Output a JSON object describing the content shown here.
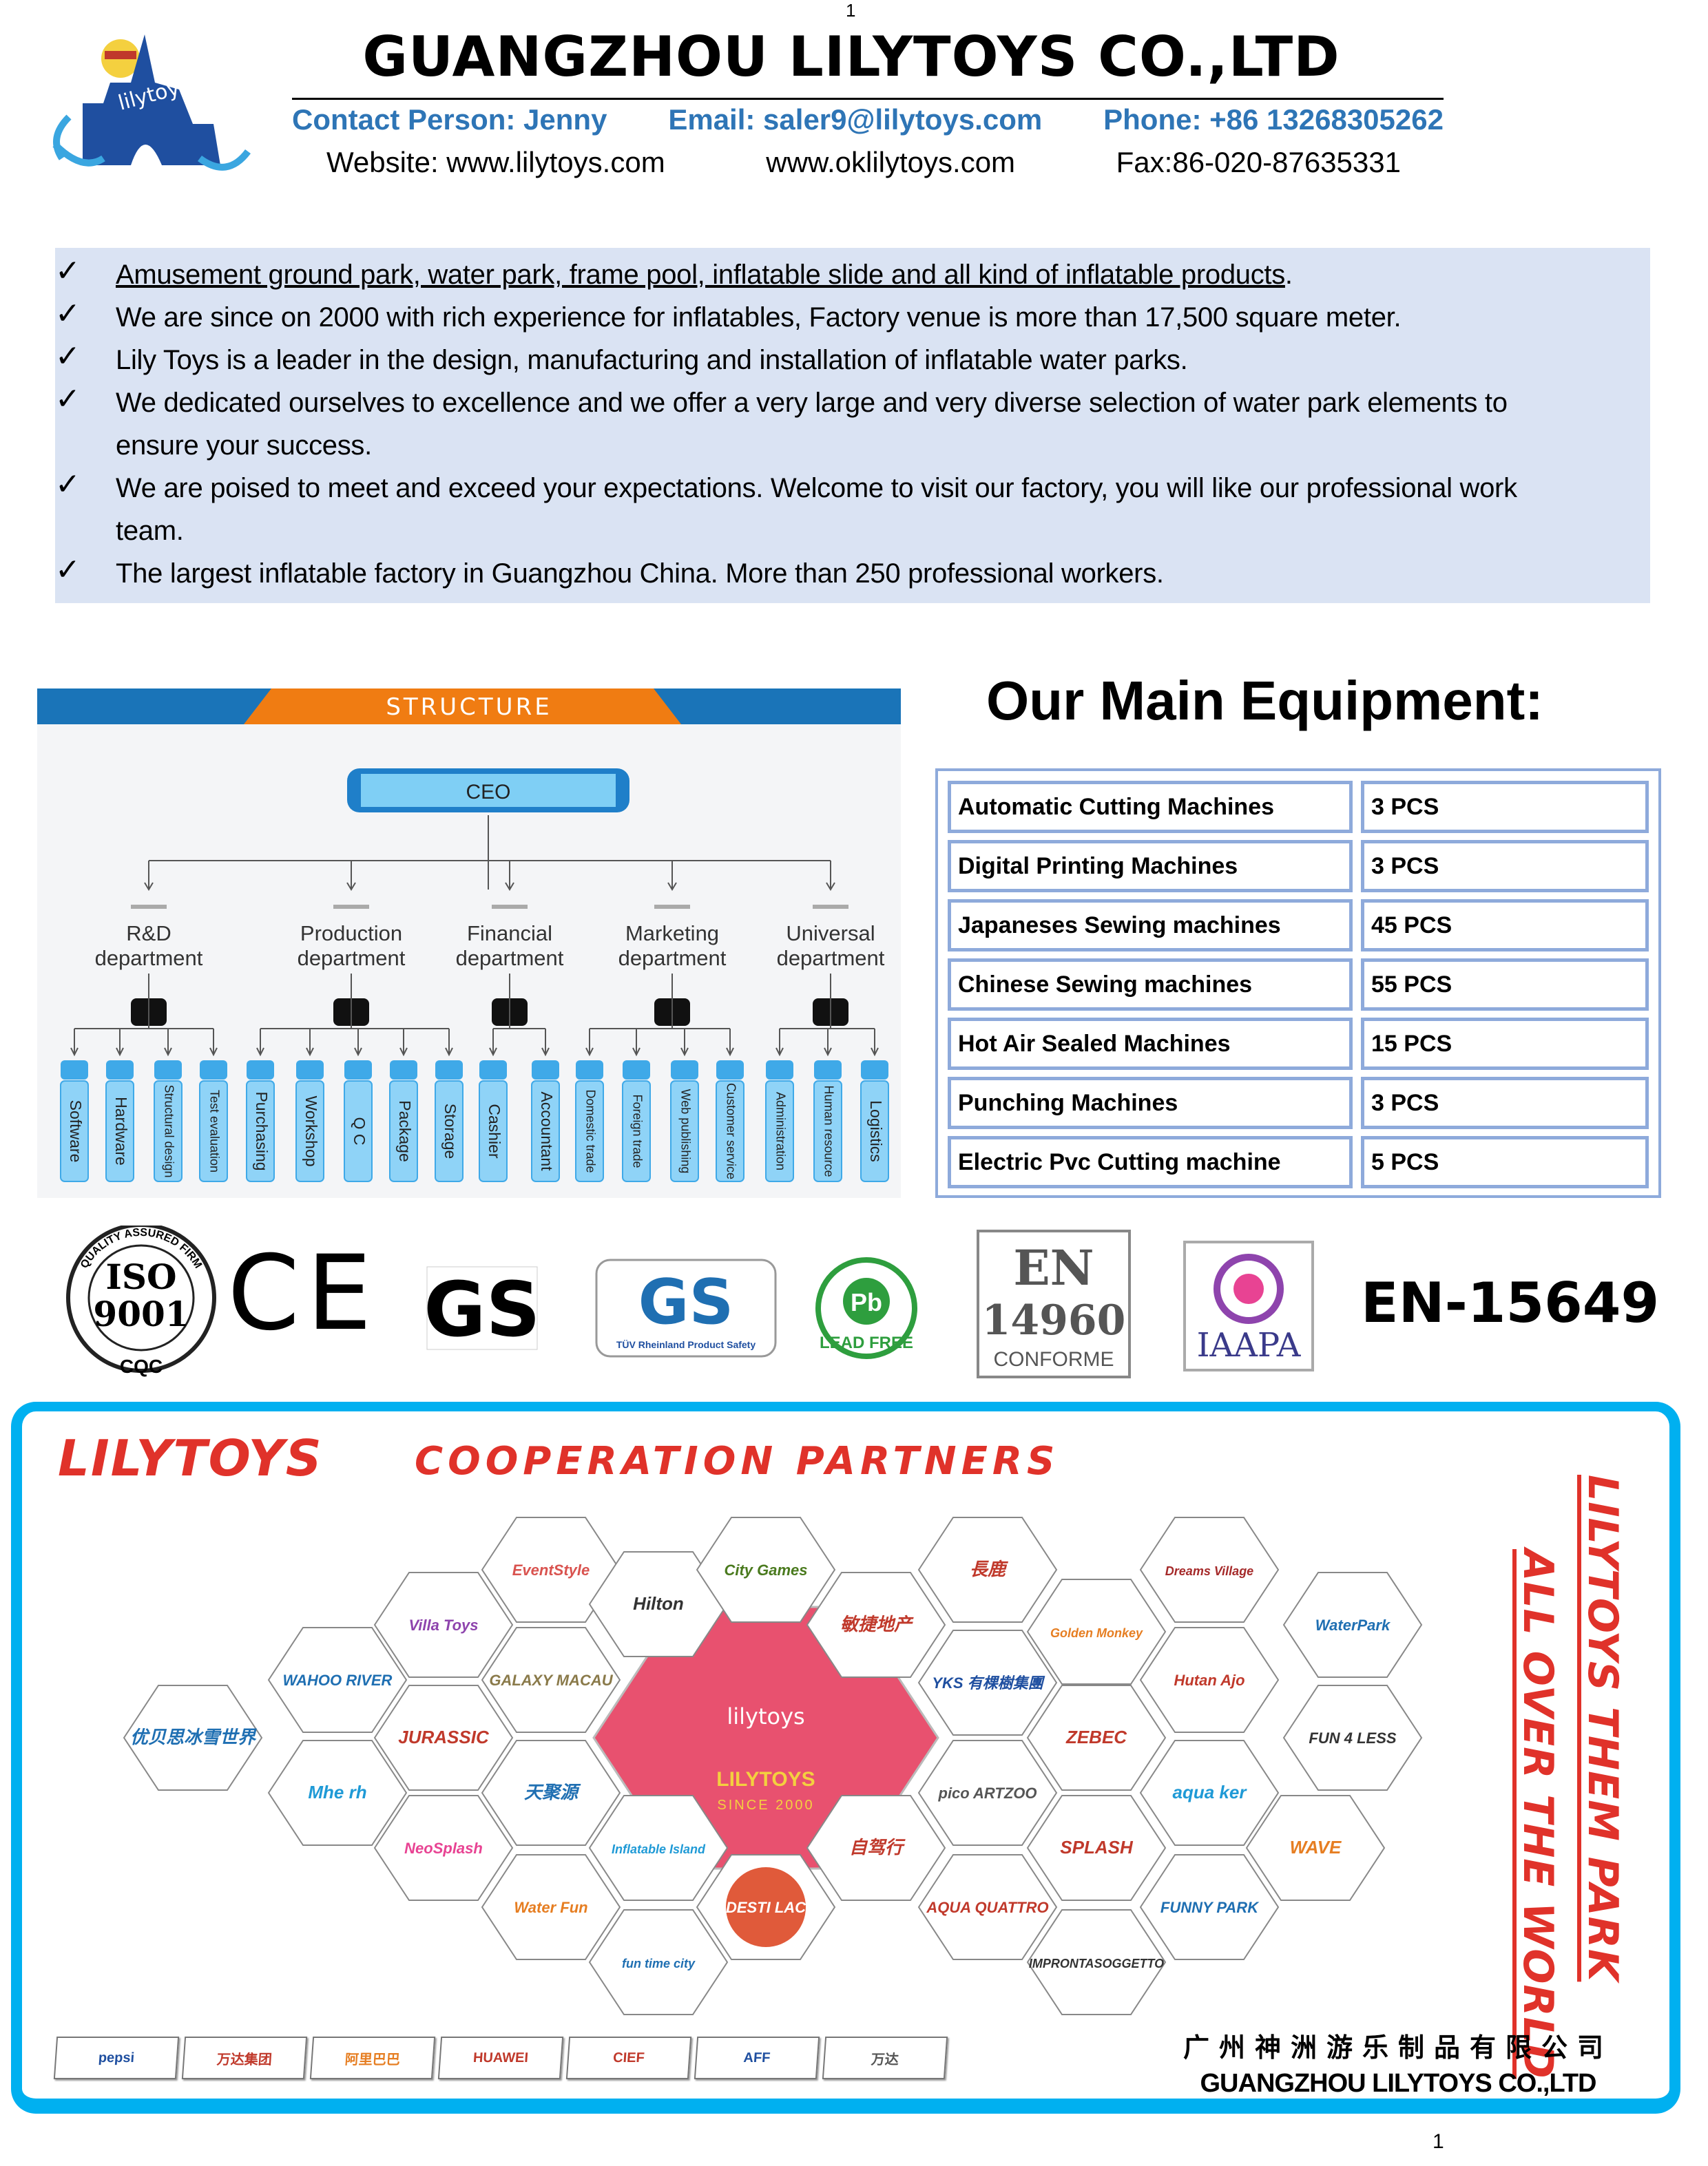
{
  "header": {
    "title": "GUANGZHOU LILYTOYS CO.,LTD",
    "page_top": "1",
    "logo_text": "lilytoys",
    "contact_person": "Contact Person: Jenny",
    "email": "Email: saler9@lilytoys.com",
    "phone": "Phone: +86 13268305262",
    "website1": "Website: www.lilytoys.com",
    "website2": "www.oklilytoys.com",
    "fax": "Fax:86-020-87635331",
    "accent": "#2e75b6"
  },
  "bullets": [
    "Amusement ground park, water park, frame pool, inflatable slide and all kind of inflatable products",
    "We are since on 2000 with rich experience for inflatables, Factory venue is more than 17,500 square meter.",
    "Lily Toys is a leader in the design, manufacturing and installation of inflatable water parks.",
    "We dedicated ourselves to excellence and we offer a very large and very diverse selection of water park elements to ensure your success.",
    "We are poised to meet and exceed your expectations. Welcome to visit our factory, you will like our professional work team.",
    "The largest inflatable factory in Guangzhou China. More than 250 professional workers."
  ],
  "bullet_check": "✓",
  "structure": {
    "banner": "STRUCTURE",
    "ceo": "CEO",
    "departments": [
      {
        "line1": "R&D",
        "line2": "department",
        "units": [
          "Software",
          "Hardware",
          "Structural design",
          "Test evaluation"
        ]
      },
      {
        "line1": "Production",
        "line2": "department",
        "units": [
          "Purchasing",
          "Workshop",
          "Q    C",
          "Package",
          "Storage"
        ]
      },
      {
        "line1": "Financial",
        "line2": "department",
        "units": [
          "Cashier",
          "Accountant"
        ]
      },
      {
        "line1": "Marketing",
        "line2": "department",
        "units": [
          "Domestic trade",
          "Foreign trade",
          "Web publishing",
          "Customer service"
        ]
      },
      {
        "line1": "Universal",
        "line2": "department",
        "units": [
          "Administration",
          "Human resource",
          "Logistics"
        ]
      }
    ]
  },
  "equipment": {
    "title": "Our Main Equipment:",
    "rows": [
      {
        "name": "Automatic Cutting Machines",
        "qty": "3 PCS"
      },
      {
        "name": "Digital Printing Machines",
        "qty": "3 PCS"
      },
      {
        "name": "Japaneses Sewing machines",
        "qty": "45 PCS"
      },
      {
        "name": "Chinese Sewing machines",
        "qty": "55 PCS"
      },
      {
        "name": "Hot Air Sealed Machines",
        "qty": "15 PCS"
      },
      {
        "name": "Punching Machines",
        "qty": "3 PCS"
      },
      {
        "name": "Electric Pvc Cutting machine",
        "qty": "5 PCS"
      }
    ]
  },
  "certifications": {
    "iso": [
      "ISO",
      "9001",
      "QUALITY ASSURED FIRM",
      "CQC"
    ],
    "ce": "CE",
    "gs": "GS",
    "tuv": [
      "TÜV Rheinland Product Safety",
      "GS"
    ],
    "lead_free": [
      "Pb",
      "LEAD FREE"
    ],
    "en14960": [
      "EN",
      "14960",
      "CONFORME"
    ],
    "iaapa": "IAAPA",
    "en15649": "EN-15649"
  },
  "partners": {
    "brand": "LILYTOYS",
    "title": "COOPERATION PARTNERS",
    "side1": "LILYTOYS THEM PARK",
    "side2": "ALL OVER THE WORLD",
    "accent": "#e0322a",
    "border_color": "#00b0f0",
    "center": {
      "logo": "lilytoys",
      "name": "LILYTOYS",
      "since": "SINCE 2000",
      "color": "#e8516f"
    },
    "logos": [
      {
        "name": "EventStyle",
        "color": "#d9534f"
      },
      {
        "name": "Hilton",
        "color": "#333333"
      },
      {
        "name": "City Games",
        "color": "#4a7a1e"
      },
      {
        "name": "長鹿",
        "color": "#c0392b"
      },
      {
        "name": "Dreams Village",
        "color": "#a52a2a"
      },
      {
        "name": "Villa Toys",
        "color": "#8e44ad"
      },
      {
        "name": "敏捷地产",
        "color": "#c0392b"
      },
      {
        "name": "Golden Monkey",
        "color": "#e67e22"
      },
      {
        "name": "WaterPark",
        "color": "#1f6fb2"
      },
      {
        "name": "WAHOO RIVER",
        "color": "#1f6fb2"
      },
      {
        "name": "GALAXY MACAU",
        "color": "#8a7a4a"
      },
      {
        "name": "YKS 有棵樹集團",
        "color": "#1f4fa0"
      },
      {
        "name": "Hutan Ajo",
        "color": "#c0392b"
      },
      {
        "name": "优贝思冰雪世界",
        "color": "#1f6fb2"
      },
      {
        "name": "JURASSIC",
        "color": "#c0392b"
      },
      {
        "name": "ZEBEC",
        "color": "#c0392b"
      },
      {
        "name": "FUN 4 LESS",
        "color": "#333333"
      },
      {
        "name": "Mhe rh",
        "color": "#1f9ad6"
      },
      {
        "name": "天聚源",
        "color": "#1f6fb2"
      },
      {
        "name": "pico ARTZOO",
        "color": "#555555"
      },
      {
        "name": "aqua ker",
        "color": "#1f9ad6"
      },
      {
        "name": "NeoSplash",
        "color": "#e84393"
      },
      {
        "name": "Inflatable Island",
        "color": "#1f9ad6"
      },
      {
        "name": "自驾行",
        "color": "#c0392b"
      },
      {
        "name": "SPLASH",
        "color": "#c0392b"
      },
      {
        "name": "WAVE",
        "color": "#e67e22"
      },
      {
        "name": "Water Fun",
        "color": "#e67e22"
      },
      {
        "name": "DESTI LAC",
        "color": "#ffffff"
      },
      {
        "name": "AQUA QUATTRO",
        "color": "#c0392b"
      },
      {
        "name": "FUNNY PARK",
        "color": "#1f6fb2"
      },
      {
        "name": "fun time city",
        "color": "#1f6fb2"
      },
      {
        "name": "IMPRONTASOGGETTO",
        "color": "#333333"
      }
    ],
    "clients": [
      {
        "name": "pepsi",
        "color": "#1f4fa0"
      },
      {
        "name": "万达集团",
        "color": "#c0392b"
      },
      {
        "name": "阿里巴巴",
        "color": "#e67e22"
      },
      {
        "name": "HUAWEI",
        "color": "#c0392b"
      },
      {
        "name": "CIEF",
        "color": "#c0392b"
      },
      {
        "name": "AFF",
        "color": "#1f4fa0"
      },
      {
        "name": "万达",
        "color": "#555555"
      }
    ],
    "company_cn": "广州神洲游乐制品有限公司",
    "company_en": "GUANGZHOU LILYTOYS CO.,LTD"
  },
  "page_number": "1"
}
